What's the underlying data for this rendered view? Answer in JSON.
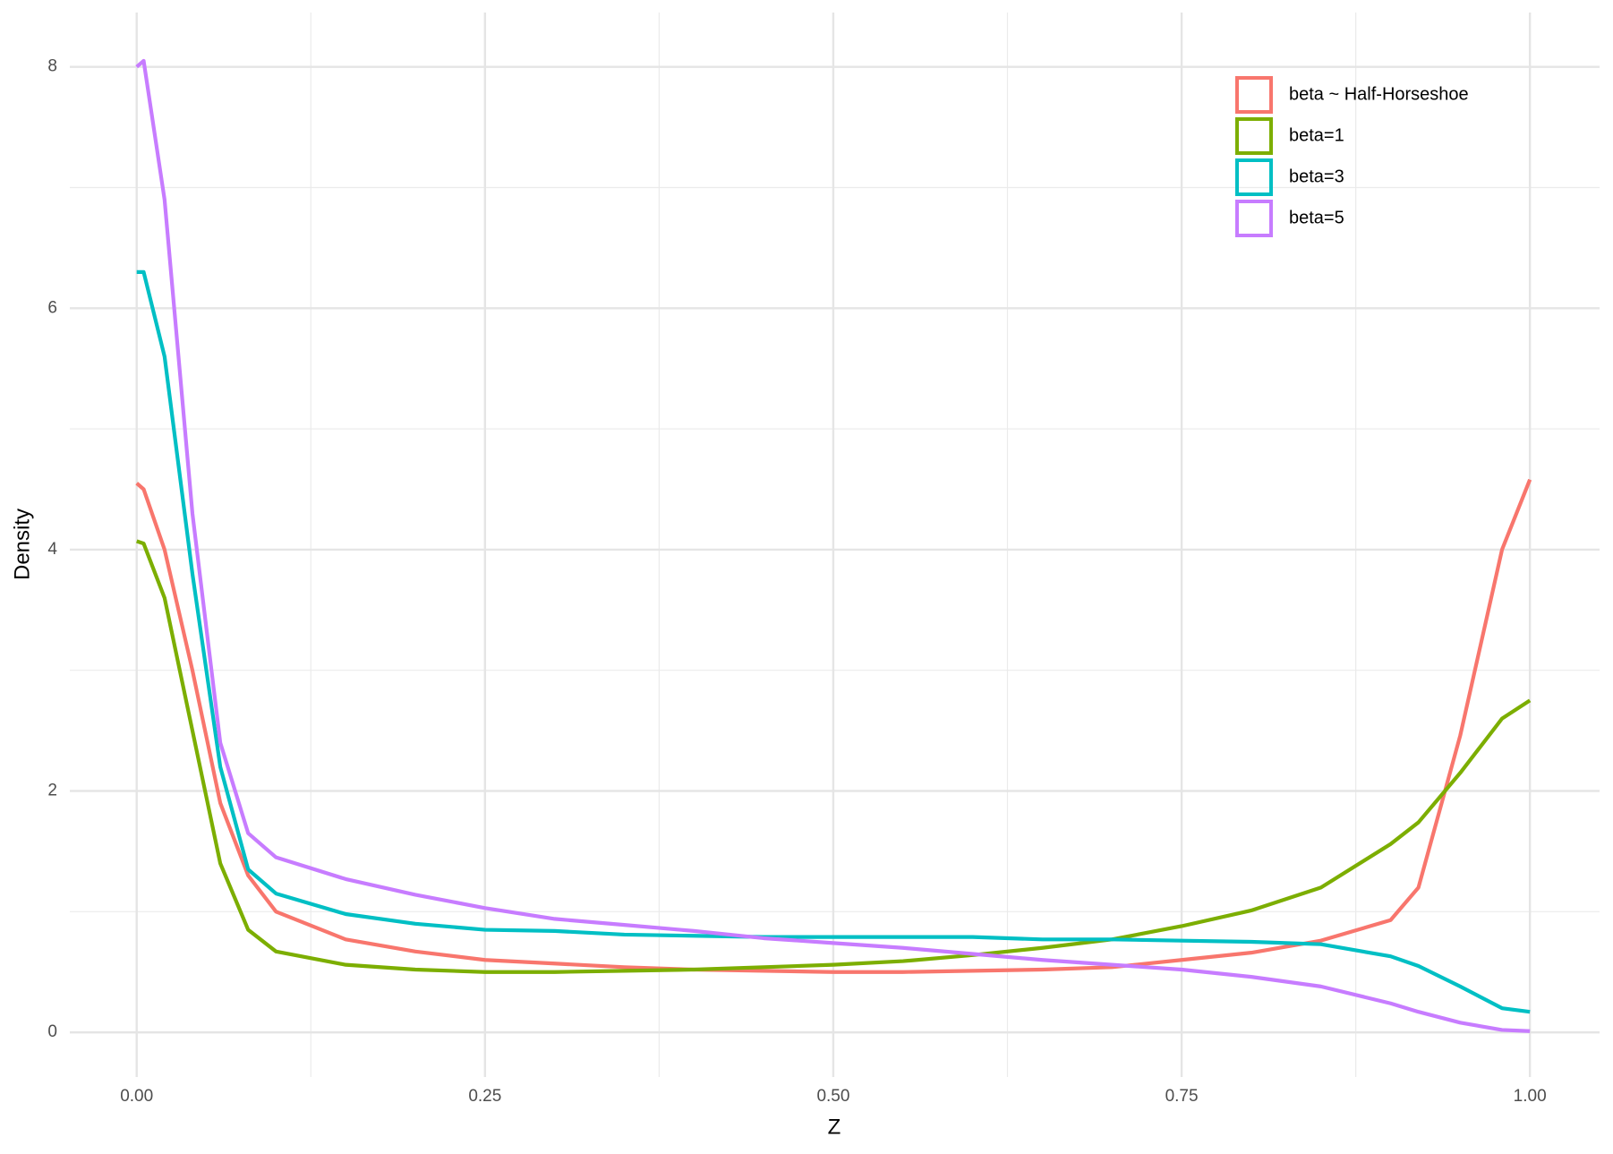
{
  "chart_data": {
    "type": "line",
    "x_label": "Z",
    "y_label": "Density",
    "x": [
      0,
      0.005,
      0.02,
      0.04,
      0.06,
      0.08,
      0.1,
      0.15,
      0.2,
      0.25,
      0.3,
      0.35,
      0.4,
      0.45,
      0.5,
      0.55,
      0.6,
      0.65,
      0.7,
      0.75,
      0.8,
      0.85,
      0.9,
      0.92,
      0.95,
      0.98,
      1.0
    ],
    "series": [
      {
        "name": "beta ~ Half-Horseshoe",
        "color": "#F8766D",
        "values": [
          4.55,
          4.5,
          4.0,
          3.0,
          1.9,
          1.3,
          1.0,
          0.77,
          0.67,
          0.6,
          0.57,
          0.54,
          0.52,
          0.51,
          0.5,
          0.5,
          0.51,
          0.52,
          0.54,
          0.6,
          0.66,
          0.76,
          0.93,
          1.2,
          2.46,
          4.0,
          4.58
        ]
      },
      {
        "name": "beta=1",
        "color": "#7CAE00",
        "values": [
          4.07,
          4.05,
          3.6,
          2.5,
          1.4,
          0.85,
          0.67,
          0.56,
          0.52,
          0.5,
          0.5,
          0.51,
          0.52,
          0.54,
          0.56,
          0.59,
          0.64,
          0.7,
          0.77,
          0.88,
          1.01,
          1.2,
          1.56,
          1.74,
          2.15,
          2.6,
          2.75
        ]
      },
      {
        "name": "beta=3",
        "color": "#00BFC4",
        "values": [
          6.3,
          6.3,
          5.6,
          3.8,
          2.2,
          1.35,
          1.15,
          0.98,
          0.9,
          0.85,
          0.84,
          0.81,
          0.8,
          0.79,
          0.79,
          0.79,
          0.79,
          0.77,
          0.77,
          0.76,
          0.75,
          0.73,
          0.63,
          0.55,
          0.38,
          0.2,
          0.17
        ]
      },
      {
        "name": "beta=5",
        "color": "#C77CFF",
        "values": [
          8.0,
          8.05,
          6.9,
          4.3,
          2.4,
          1.65,
          1.45,
          1.27,
          1.14,
          1.03,
          0.94,
          0.89,
          0.84,
          0.78,
          0.74,
          0.7,
          0.65,
          0.6,
          0.56,
          0.52,
          0.46,
          0.38,
          0.24,
          0.17,
          0.08,
          0.02,
          0.01
        ]
      }
    ],
    "xlim": [
      -0.048,
      1.05
    ],
    "ylim": [
      -0.37,
      8.45
    ],
    "xticks": [
      {
        "value": 0,
        "label": "0.00"
      },
      {
        "value": 0.25,
        "label": "0.25"
      },
      {
        "value": 0.5,
        "label": "0.50"
      },
      {
        "value": 0.75,
        "label": "0.75"
      },
      {
        "value": 1,
        "label": "1.00"
      }
    ],
    "yticks": [
      0,
      2,
      4,
      6,
      8
    ],
    "grid": true,
    "legend_position": "top-right"
  }
}
